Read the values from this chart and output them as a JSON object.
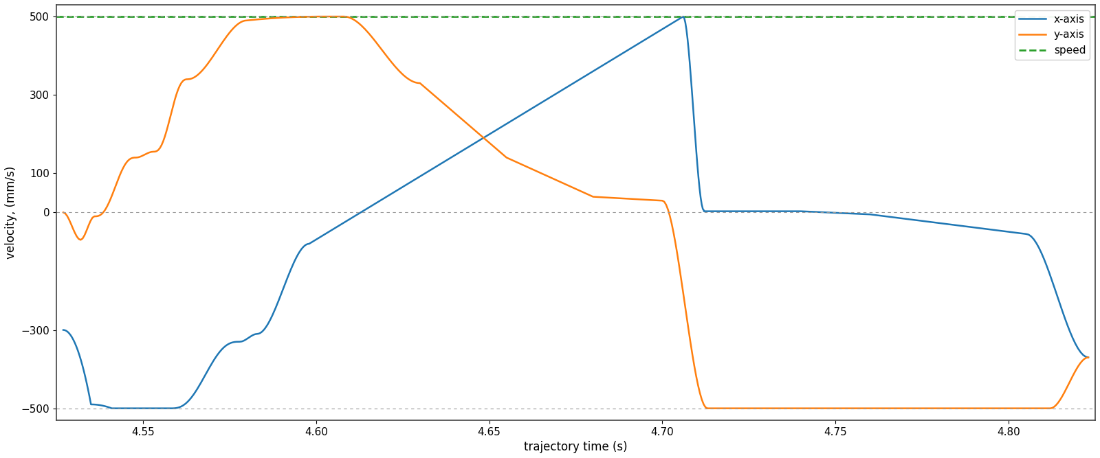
{
  "title": "",
  "xlabel": "trajectory time (s)",
  "ylabel": "velocity, (mm/s)",
  "xlim": [
    4.525,
    4.825
  ],
  "ylim": [
    -530,
    530
  ],
  "speed_value": 500,
  "legend_labels": [
    "x-axis",
    "y-axis",
    "speed"
  ],
  "x_color": "#1f77b4",
  "y_color": "#ff7f0e",
  "speed_color": "#2ca02c",
  "yticks": [
    -500,
    -300,
    0,
    100,
    300,
    500
  ],
  "xticks": [
    4.55,
    4.6,
    4.65,
    4.7,
    4.75,
    4.8
  ],
  "grid_color": "#888888",
  "background_color": "#ffffff"
}
